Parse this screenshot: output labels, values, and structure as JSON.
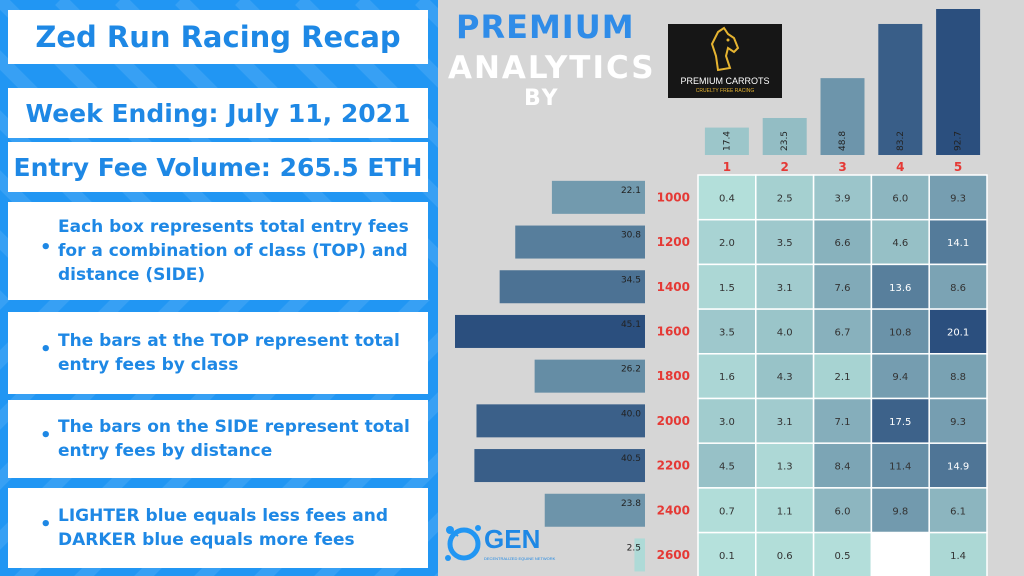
{
  "panel": {
    "title": "Zed Run Racing Recap",
    "week": "Week Ending: July 11, 2021",
    "volume": "Entry Fee Volume: 265.5 ETH",
    "bullets": [
      "Each box represents total entry fees for a combination of class (TOP) and distance (SIDE)",
      "The bars at the TOP represent total entry fees by class",
      "The bars on the SIDE represent total entry fees by distance",
      "LIGHTER blue equals less fees and DARKER blue equals more fees"
    ]
  },
  "branding": {
    "premium": "PREMIUM",
    "analytics": "ANALYTICS",
    "by": "BY",
    "logo_text": "PREMIUM CARROTS",
    "logo_tagline": "CRUELTY FREE RACING",
    "gen_text": "GEN",
    "gen_tagline": "DECENTRALIZED EQUINE NETWORK"
  },
  "colors": {
    "panel_blue": "#2196f3",
    "label_red": "#e53935",
    "dark_cell": "#2b4f7e",
    "light_cell": "#b6e2dc"
  },
  "chart_data": {
    "type": "heatmap",
    "classes": [
      "1",
      "2",
      "3",
      "4",
      "5"
    ],
    "distances": [
      "1000",
      "1200",
      "1400",
      "1600",
      "1800",
      "2000",
      "2200",
      "2400",
      "2600"
    ],
    "values": [
      [
        0.4,
        2.5,
        3.9,
        6.0,
        9.3
      ],
      [
        2.0,
        3.5,
        6.6,
        4.6,
        14.1
      ],
      [
        1.5,
        3.1,
        7.6,
        13.6,
        8.6
      ],
      [
        3.5,
        4.0,
        6.7,
        10.8,
        20.1
      ],
      [
        1.6,
        4.3,
        2.1,
        9.4,
        8.8
      ],
      [
        3.0,
        3.1,
        7.1,
        17.5,
        9.3
      ],
      [
        4.5,
        1.3,
        8.4,
        11.4,
        14.9
      ],
      [
        0.7,
        1.1,
        6.0,
        9.8,
        6.1
      ],
      [
        0.1,
        0.6,
        0.5,
        null,
        1.4
      ]
    ],
    "class_totals": [
      17.4,
      23.5,
      48.8,
      83.2,
      92.7
    ],
    "distance_totals": [
      22.1,
      30.8,
      34.5,
      45.1,
      26.2,
      40.0,
      40.5,
      23.8,
      2.5
    ],
    "color_scale": "light teal (low) to dark blue (high)"
  }
}
